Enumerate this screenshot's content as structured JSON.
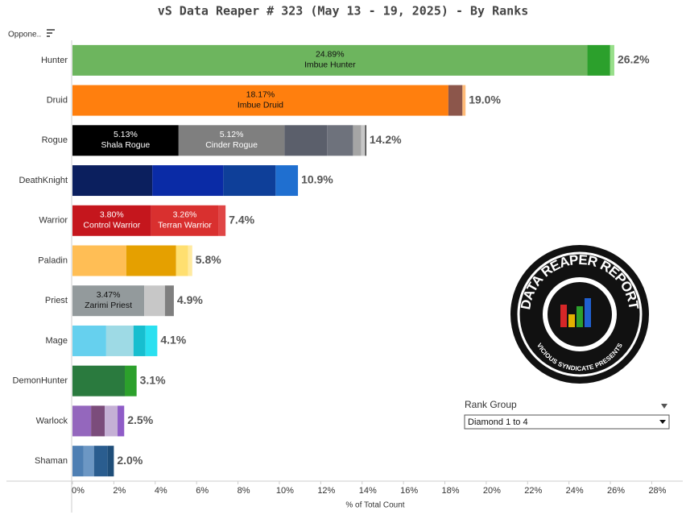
{
  "chart_data": {
    "type": "stacked-bar-horizontal",
    "title": "vS Data Reaper #  323 (May 13 - 19, 2025) - By Ranks",
    "row_header": "Oppone..",
    "x_label": "% of Total Count",
    "xlim": [
      0,
      29.5
    ],
    "xticks": [
      {
        "value": 0,
        "label": "0%"
      },
      {
        "value": 2,
        "label": "2%"
      },
      {
        "value": 4,
        "label": "4%"
      },
      {
        "value": 6,
        "label": "6%"
      },
      {
        "value": 8,
        "label": "8%"
      },
      {
        "value": 10,
        "label": "10%"
      },
      {
        "value": 12,
        "label": "12%"
      },
      {
        "value": 14,
        "label": "14%"
      },
      {
        "value": 16,
        "label": "16%"
      },
      {
        "value": 18,
        "label": "18%"
      },
      {
        "value": 20,
        "label": "20%"
      },
      {
        "value": 22,
        "label": "22%"
      },
      {
        "value": 24,
        "label": "24%"
      },
      {
        "value": 26,
        "label": "26%"
      },
      {
        "value": 28,
        "label": "28%"
      }
    ],
    "grid": false,
    "categories": [
      "Hunter",
      "Druid",
      "Rogue",
      "DeathKnight",
      "Warrior",
      "Paladin",
      "Priest",
      "Mage",
      "DemonHunter",
      "Warlock",
      "Shaman"
    ],
    "total_labels": [
      "26.2%",
      "19.0%",
      "14.2%",
      "10.9%",
      "7.4%",
      "5.8%",
      "4.9%",
      "4.1%",
      "3.1%",
      "2.5%",
      "2.0%"
    ],
    "bars": [
      {
        "segments": [
          {
            "value": 24.89,
            "value_label": "24.89%",
            "name": "Imbue Hunter",
            "color": "#6db55e",
            "label_color": "#111111"
          },
          {
            "value": 1.1,
            "color": "#2ca02c"
          },
          {
            "value": 0.2,
            "color": "#98df8a"
          }
        ]
      },
      {
        "segments": [
          {
            "value": 18.17,
            "value_label": "18.17%",
            "name": "Imbue Druid",
            "color": "#ff7f0e",
            "label_color": "#111111"
          },
          {
            "value": 0.68,
            "color": "#8c564b"
          },
          {
            "value": 0.15,
            "color": "#ffbb78"
          }
        ]
      },
      {
        "segments": [
          {
            "value": 5.13,
            "value_label": "5.13%",
            "name": "Shala Rogue",
            "color": "#000000",
            "label_color": "#ffffff"
          },
          {
            "value": 5.12,
            "value_label": "5.12%",
            "name": "Cinder Rogue",
            "color": "#7f7f7f",
            "label_color": "#ffffff"
          },
          {
            "value": 2.06,
            "color": "#5b5f6b"
          },
          {
            "value": 1.25,
            "color": "#6e727c"
          },
          {
            "value": 0.39,
            "color": "#a5a5a5"
          },
          {
            "value": 0.2,
            "color": "#c7c7c7"
          },
          {
            "value": 0.05,
            "color": "#222222"
          }
        ]
      },
      {
        "segments": [
          {
            "value": 3.86,
            "color": "#0b1f5e"
          },
          {
            "value": 3.43,
            "color": "#0a2ba6"
          },
          {
            "value": 2.53,
            "color": "#0e3f99"
          },
          {
            "value": 1.08,
            "color": "#1f6fd0"
          }
        ]
      },
      {
        "segments": [
          {
            "value": 3.8,
            "value_label": "3.80%",
            "name": "Control Warrior",
            "color": "#c5161d",
            "label_color": "#ffffff"
          },
          {
            "value": 3.26,
            "value_label": "3.26%",
            "name": "Terran Warrior",
            "color": "#d9302f",
            "label_color": "#ffffff"
          },
          {
            "value": 0.34,
            "color": "#e04646"
          }
        ]
      },
      {
        "segments": [
          {
            "value": 2.6,
            "color": "#ffbe55"
          },
          {
            "value": 2.41,
            "color": "#e5a000"
          },
          {
            "value": 0.58,
            "color": "#ffdf70"
          },
          {
            "value": 0.2,
            "color": "#ffeaa0"
          }
        ]
      },
      {
        "segments": [
          {
            "value": 3.47,
            "value_label": "3.47%",
            "name": "Zarimi Priest",
            "color": "#939a9c",
            "label_color": "#111111"
          },
          {
            "value": 1.0,
            "color": "#c7c7c7"
          },
          {
            "value": 0.43,
            "color": "#7f7f7f"
          }
        ]
      },
      {
        "segments": [
          {
            "value": 1.63,
            "color": "#66d0ee"
          },
          {
            "value": 1.32,
            "color": "#9edae5"
          },
          {
            "value": 0.58,
            "color": "#17becf"
          },
          {
            "value": 0.57,
            "color": "#2ae0f0"
          }
        ]
      },
      {
        "segments": [
          {
            "value": 2.53,
            "color": "#2a7a3e"
          },
          {
            "value": 0.57,
            "color": "#2ca02c"
          }
        ]
      },
      {
        "segments": [
          {
            "value": 0.9,
            "color": "#9467bd"
          },
          {
            "value": 0.66,
            "color": "#7b4c7b"
          },
          {
            "value": 0.62,
            "color": "#c5b0d5"
          },
          {
            "value": 0.32,
            "color": "#8f5cc7"
          }
        ]
      },
      {
        "segments": [
          {
            "value": 0.54,
            "color": "#4e7fb3"
          },
          {
            "value": 0.5,
            "color": "#6c97c4"
          },
          {
            "value": 0.66,
            "color": "#2a5d8f"
          },
          {
            "value": 0.3,
            "color": "#1f4e79"
          }
        ]
      }
    ]
  },
  "filter": {
    "title": "Rank Group",
    "selected": "Diamond 1 to 4"
  },
  "logo": {
    "top": "DATA REAPER REPORT",
    "bottom": "VICIOUS SYNDICATE PRESENTS"
  }
}
